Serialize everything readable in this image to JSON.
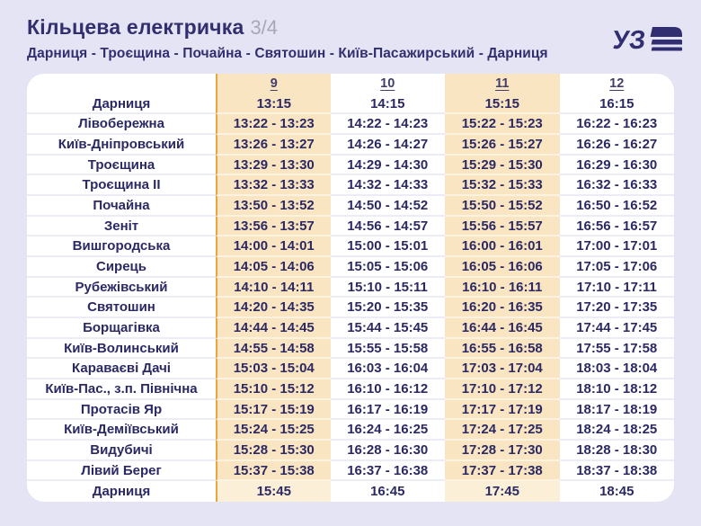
{
  "header": {
    "title": "Кільцева електричка",
    "page_indicator": "3/4",
    "route": "Дарниця - Троєщина - Почайна - Святошин - Київ-Пасажирський - Дарниця",
    "logo_text": "УЗ"
  },
  "colors": {
    "background": "#e5e4f4",
    "card": "#ffffff",
    "navy_text": "#2b2963",
    "highlight_column": "#fae5c2",
    "highlight_border": "#eaa53f",
    "logo_navy": "#312e72"
  },
  "schedule": {
    "trip_numbers": [
      "9",
      "10",
      "11",
      "12"
    ],
    "highlighted_trip_columns": [
      "9",
      "11"
    ],
    "rows": [
      {
        "station": "Дарниця",
        "times": [
          "13:15",
          "14:15",
          "15:15",
          "16:15"
        ]
      },
      {
        "station": "Лівобережна",
        "times": [
          "13:22 - 13:23",
          "14:22 - 14:23",
          "15:22 - 15:23",
          "16:22 - 16:23"
        ]
      },
      {
        "station": "Київ-Дніпровський",
        "times": [
          "13:26 - 13:27",
          "14:26 - 14:27",
          "15:26 - 15:27",
          "16:26 - 16:27"
        ]
      },
      {
        "station": "Троєщина",
        "times": [
          "13:29 - 13:30",
          "14:29 - 14:30",
          "15:29 - 15:30",
          "16:29 - 16:30"
        ]
      },
      {
        "station": "Троєщина II",
        "times": [
          "13:32 - 13:33",
          "14:32 - 14:33",
          "15:32 - 15:33",
          "16:32 - 16:33"
        ]
      },
      {
        "station": "Почайна",
        "times": [
          "13:50 - 13:52",
          "14:50 - 14:52",
          "15:50 - 15:52",
          "16:50 - 16:52"
        ]
      },
      {
        "station": "Зеніт",
        "times": [
          "13:56 - 13:57",
          "14:56 - 14:57",
          "15:56 - 15:57",
          "16:56 - 16:57"
        ]
      },
      {
        "station": "Вишгородська",
        "times": [
          "14:00 - 14:01",
          "15:00 - 15:01",
          "16:00 - 16:01",
          "17:00 - 17:01"
        ]
      },
      {
        "station": "Сирець",
        "times": [
          "14:05 - 14:06",
          "15:05 - 15:06",
          "16:05 - 16:06",
          "17:05 - 17:06"
        ]
      },
      {
        "station": "Рубежівський",
        "times": [
          "14:10 - 14:11",
          "15:10 - 15:11",
          "16:10 - 16:11",
          "17:10 - 17:11"
        ]
      },
      {
        "station": "Святошин",
        "times": [
          "14:20 - 14:35",
          "15:20 - 15:35",
          "16:20 - 16:35",
          "17:20 - 17:35"
        ]
      },
      {
        "station": "Борщагівка",
        "times": [
          "14:44 - 14:45",
          "15:44 - 15:45",
          "16:44 - 16:45",
          "17:44 - 17:45"
        ]
      },
      {
        "station": "Київ-Волинський",
        "times": [
          "14:55 - 14:58",
          "15:55 - 15:58",
          "16:55 - 16:58",
          "17:55 - 17:58"
        ]
      },
      {
        "station": "Караваєві Дачі",
        "times": [
          "15:03 - 15:04",
          "16:03 - 16:04",
          "17:03 - 17:04",
          "18:03 - 18:04"
        ]
      },
      {
        "station": "Київ-Пас., з.п. Північна",
        "times": [
          "15:10 - 15:12",
          "16:10 - 16:12",
          "17:10 - 17:12",
          "18:10 - 18:12"
        ]
      },
      {
        "station": "Протасів Яр",
        "times": [
          "15:17 - 15:19",
          "16:17 - 16:19",
          "17:17 - 17:19",
          "18:17 - 18:19"
        ]
      },
      {
        "station": "Київ-Деміївський",
        "times": [
          "15:24 - 15:25",
          "16:24 - 16:25",
          "17:24 - 17:25",
          "18:24 - 18:25"
        ]
      },
      {
        "station": "Видубичі",
        "times": [
          "15:28 - 15:30",
          "16:28 - 16:30",
          "17:28 - 17:30",
          "18:28 - 18:30"
        ]
      },
      {
        "station": "Лівий Берег",
        "times": [
          "15:37 - 15:38",
          "16:37 - 16:38",
          "17:37 - 17:38",
          "18:37 - 18:38"
        ]
      },
      {
        "station": "Дарниця",
        "times": [
          "15:45",
          "16:45",
          "17:45",
          "18:45"
        ]
      }
    ]
  }
}
